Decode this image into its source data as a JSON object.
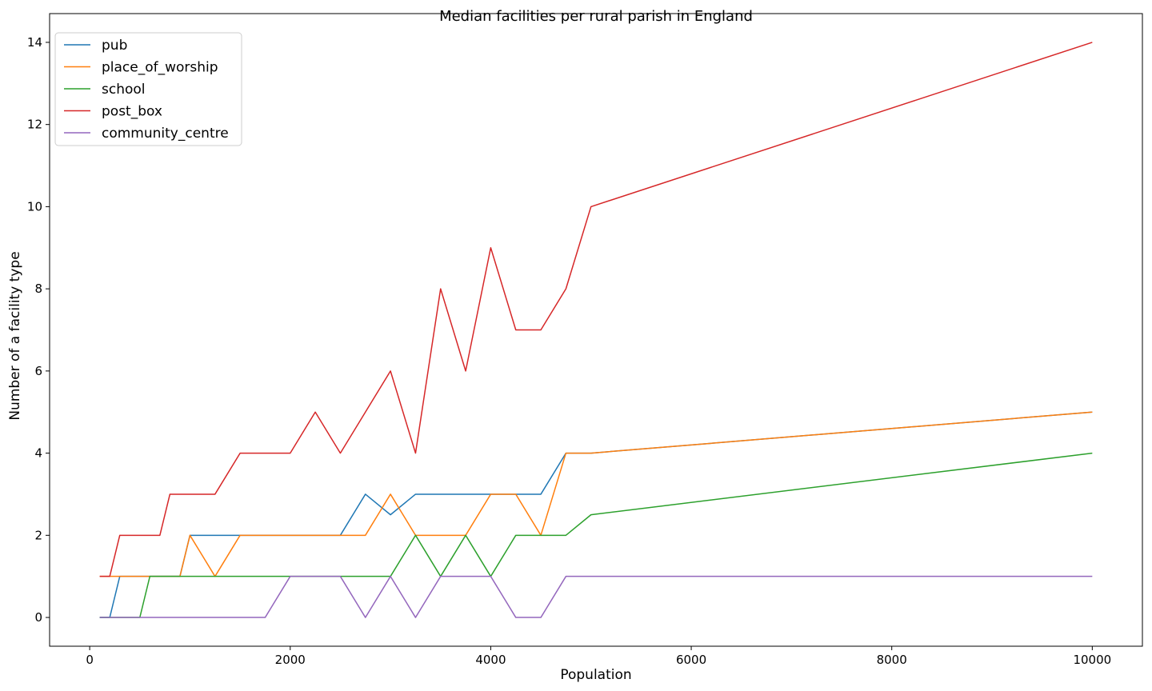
{
  "chart_data": {
    "type": "line",
    "title": "Median facilities per rural parish in England",
    "xlabel": "Population",
    "ylabel": "Number of a facility type",
    "xlim": [
      -400,
      10500
    ],
    "ylim": [
      -0.7,
      14.7
    ],
    "xticks": [
      0,
      2000,
      4000,
      6000,
      8000,
      10000
    ],
    "yticks": [
      0,
      2,
      4,
      6,
      8,
      10,
      12,
      14
    ],
    "grid": false,
    "legend": "upper-left",
    "x": [
      100,
      200,
      300,
      400,
      500,
      600,
      700,
      800,
      900,
      1000,
      1250,
      1500,
      1750,
      2000,
      2250,
      2500,
      2750,
      3000,
      3250,
      3500,
      3750,
      4000,
      4250,
      4500,
      4750,
      5000,
      10000
    ],
    "series": [
      {
        "name": "pub",
        "color": "#1f77b4",
        "values": [
          0,
          0,
          1,
          1,
          1,
          1,
          1,
          1,
          1,
          2,
          2,
          2,
          2,
          2,
          2,
          2,
          3,
          2.5,
          3,
          3,
          3,
          3,
          3,
          3,
          4,
          4,
          5
        ]
      },
      {
        "name": "place_of_worship",
        "color": "#ff7f0e",
        "values": [
          1,
          1,
          1,
          1,
          1,
          1,
          1,
          1,
          1,
          2,
          1,
          2,
          2,
          2,
          2,
          2,
          2,
          3,
          2,
          2,
          2,
          3,
          3,
          2,
          4,
          4,
          5
        ]
      },
      {
        "name": "school",
        "color": "#2ca02c",
        "values": [
          0,
          0,
          0,
          0,
          0,
          1,
          1,
          1,
          1,
          1,
          1,
          1,
          1,
          1,
          1,
          1,
          1,
          1,
          2,
          1,
          2,
          1,
          2,
          2,
          2,
          2.5,
          4
        ]
      },
      {
        "name": "post_box",
        "color": "#d62728",
        "values": [
          1,
          1,
          2,
          2,
          2,
          2,
          2,
          3,
          3,
          3,
          3,
          4,
          4,
          4,
          5,
          4,
          5,
          6,
          4,
          8,
          6,
          9,
          7,
          7,
          8,
          10,
          14
        ]
      },
      {
        "name": "community_centre",
        "color": "#9467bd",
        "values": [
          0,
          0,
          0,
          0,
          0,
          0,
          0,
          0,
          0,
          0,
          0,
          0,
          0,
          1,
          1,
          1,
          0,
          1,
          0,
          1,
          1,
          1,
          0,
          0,
          1,
          1,
          1
        ]
      }
    ]
  }
}
